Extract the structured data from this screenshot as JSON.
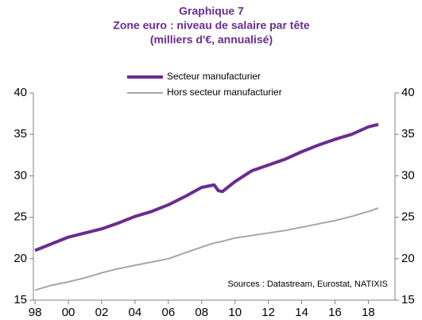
{
  "chart_data": {
    "type": "line",
    "title": "Graphique 7",
    "subtitle": "Zone euro : niveau de salaire par tête",
    "subtitle2": "(milliers  d'€, annualisé)",
    "annotation": "Sources : Datastream, Eurostat, NATIXIS",
    "x": [
      1998,
      1999,
      2000,
      2001,
      2002,
      2003,
      2004,
      2005,
      2006,
      2007,
      2008,
      2008.75,
      2009,
      2009.25,
      2010,
      2011,
      2012,
      2013,
      2014,
      2015,
      2016,
      2017,
      2018,
      2018.6
    ],
    "series": [
      {
        "name": "Secteur manufacturier",
        "color": "#6a2c8e",
        "width": 4,
        "values": [
          21.0,
          21.8,
          22.6,
          23.1,
          23.6,
          24.3,
          25.1,
          25.7,
          26.5,
          27.5,
          28.6,
          28.9,
          28.2,
          28.1,
          29.3,
          30.6,
          31.3,
          32.0,
          32.9,
          33.7,
          34.4,
          35.0,
          35.9,
          36.2
        ]
      },
      {
        "name": "Hors secteur manufacturier",
        "color": "#a6a6a6",
        "width": 2,
        "values": [
          16.2,
          16.8,
          17.2,
          17.7,
          18.3,
          18.8,
          19.2,
          19.6,
          20.0,
          20.7,
          21.4,
          21.9,
          22.0,
          22.1,
          22.5,
          22.8,
          23.1,
          23.4,
          23.8,
          24.2,
          24.6,
          25.1,
          25.7,
          26.1
        ]
      }
    ],
    "xlim": [
      1997.9,
      2019.6
    ],
    "xticks": [
      {
        "value": 1998,
        "label": "98"
      },
      {
        "value": 2000,
        "label": "00"
      },
      {
        "value": 2002,
        "label": "02"
      },
      {
        "value": 2004,
        "label": "04"
      },
      {
        "value": 2006,
        "label": "06"
      },
      {
        "value": 2008,
        "label": "08"
      },
      {
        "value": 2010,
        "label": "10"
      },
      {
        "value": 2012,
        "label": "12"
      },
      {
        "value": 2014,
        "label": "14"
      },
      {
        "value": 2016,
        "label": "16"
      },
      {
        "value": 2018,
        "label": "18"
      }
    ],
    "ylim": [
      15,
      40
    ],
    "yticks": [
      15,
      20,
      25,
      30,
      35,
      40
    ],
    "grid": false
  }
}
